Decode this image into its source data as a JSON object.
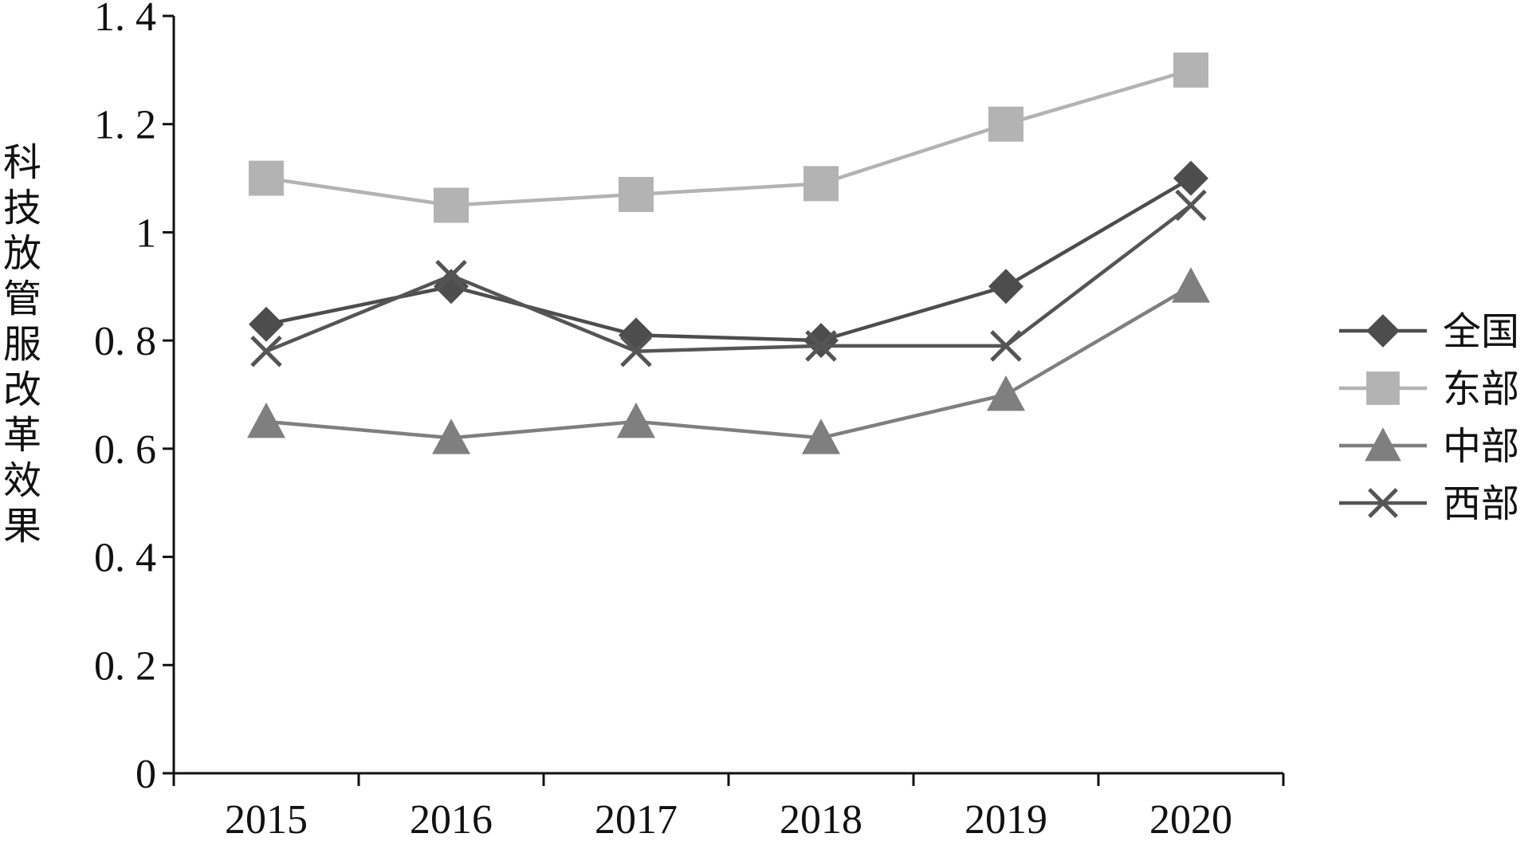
{
  "chart_data": {
    "type": "line",
    "categories": [
      "2015",
      "2016",
      "2017",
      "2018",
      "2019",
      "2020"
    ],
    "ylabel": "科技放管服改革效果",
    "xlabel": "",
    "title": "",
    "ylim": [
      0,
      1.4
    ],
    "yticks": [
      0,
      0.2,
      0.4,
      0.6,
      0.8,
      1,
      1.2,
      1.4
    ],
    "ytick_labels": [
      "0",
      "0. 2",
      "0. 4",
      "0. 6",
      "0. 8",
      "1",
      "1. 2",
      "1. 4"
    ],
    "grid": false,
    "legend_position": "right",
    "series": [
      {
        "name": "全国",
        "marker": "diamond",
        "color": "#4d4d4d",
        "values": [
          0.83,
          0.9,
          0.81,
          0.8,
          0.9,
          1.1
        ]
      },
      {
        "name": "东部",
        "marker": "square",
        "color": "#b3b3b3",
        "values": [
          1.1,
          1.05,
          1.07,
          1.09,
          1.2,
          1.3
        ]
      },
      {
        "name": "中部",
        "marker": "triangle",
        "color": "#7f7f7f",
        "values": [
          0.65,
          0.62,
          0.65,
          0.62,
          0.7,
          0.9
        ]
      },
      {
        "name": "西部",
        "marker": "cross",
        "color": "#555555",
        "values": [
          0.78,
          0.92,
          0.78,
          0.79,
          0.79,
          1.05
        ]
      }
    ]
  }
}
